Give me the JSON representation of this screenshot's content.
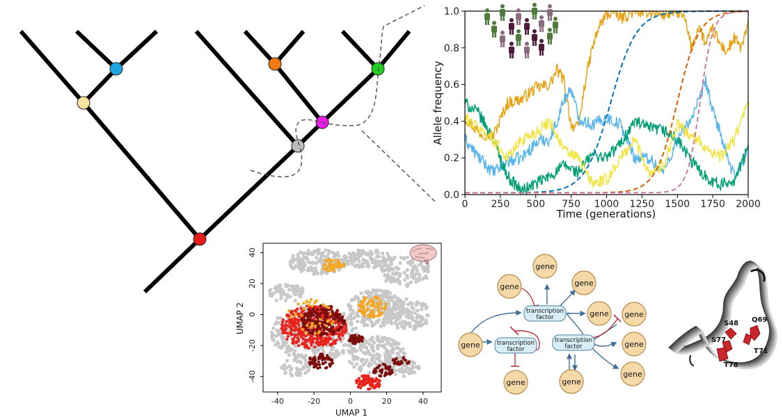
{
  "allele_plot": {
    "chart_data": {
      "type": "line",
      "xlabel": "Time (generations)",
      "ylabel": "Allele frequency",
      "xlim": [
        0,
        2000
      ],
      "ylim": [
        0,
        1
      ],
      "x_ticks": [
        "0",
        "250",
        "500",
        "750",
        "1000",
        "1250",
        "1500",
        "1750",
        "2000"
      ],
      "y_ticks": [
        "0.0",
        "0.2",
        "0.4",
        "0.6",
        "0.8",
        "1.0"
      ],
      "grid": false,
      "series": [
        {
          "style": "drift",
          "color": "#E6A317",
          "x": [
            0,
            100,
            200,
            300,
            400,
            500,
            600,
            650,
            700,
            750,
            800,
            850,
            900,
            950,
            1000,
            1050,
            1100,
            1200,
            1300,
            1400,
            1500,
            1550,
            1600,
            1650,
            1700,
            1750,
            1800,
            1850,
            1900,
            1950,
            2000
          ],
          "values": [
            0.42,
            0.34,
            0.32,
            0.5,
            0.52,
            0.58,
            0.6,
            0.68,
            0.62,
            0.38,
            0.36,
            0.62,
            0.8,
            0.92,
            0.98,
            1.0,
            0.96,
            1.0,
            1.0,
            0.98,
            1.0,
            0.96,
            0.8,
            0.92,
            0.82,
            0.9,
            0.82,
            0.78,
            0.85,
            0.8,
            0.92
          ]
        },
        {
          "style": "drift",
          "color": "#56B4E9",
          "x": [
            0,
            100,
            200,
            300,
            400,
            500,
            550,
            600,
            650,
            700,
            750,
            800,
            900,
            1000,
            1100,
            1200,
            1300,
            1400,
            1500,
            1600,
            1650,
            1700,
            1750,
            1800,
            1850,
            1900,
            1950,
            2000
          ],
          "values": [
            0.3,
            0.2,
            0.12,
            0.18,
            0.2,
            0.28,
            0.3,
            0.3,
            0.4,
            0.52,
            0.58,
            0.42,
            0.38,
            0.42,
            0.38,
            0.2,
            0.2,
            0.12,
            0.3,
            0.42,
            0.5,
            0.62,
            0.45,
            0.35,
            0.2,
            0.1,
            0.15,
            0.25
          ]
        },
        {
          "style": "drift",
          "color": "#009E73",
          "x": [
            0,
            100,
            200,
            300,
            400,
            500,
            600,
            700,
            800,
            900,
            1000,
            1100,
            1200,
            1300,
            1400,
            1500,
            1600,
            1700,
            1800,
            1900,
            2000
          ],
          "values": [
            0.5,
            0.44,
            0.3,
            0.1,
            0.02,
            0.06,
            0.1,
            0.16,
            0.12,
            0.22,
            0.2,
            0.28,
            0.4,
            0.36,
            0.35,
            0.3,
            0.18,
            0.1,
            0.05,
            0.08,
            0.25
          ]
        },
        {
          "style": "drift",
          "color": "#F0E442",
          "x": [
            0,
            100,
            200,
            300,
            400,
            500,
            600,
            700,
            800,
            900,
            1000,
            1100,
            1200,
            1300,
            1400,
            1500,
            1600,
            1700,
            1800,
            1900,
            2000
          ],
          "values": [
            0.42,
            0.36,
            0.3,
            0.2,
            0.3,
            0.34,
            0.4,
            0.24,
            0.2,
            0.06,
            0.08,
            0.2,
            0.3,
            0.12,
            0.16,
            0.38,
            0.32,
            0.26,
            0.2,
            0.3,
            0.5
          ]
        },
        {
          "style": "sweep",
          "color": "#0072B2",
          "mid": 1030,
          "k": 0.011,
          "start": 0.01
        },
        {
          "style": "sweep",
          "color": "#D55E00",
          "mid": 1500,
          "k": 0.013,
          "start": 0.01
        },
        {
          "style": "sweep",
          "color": "#CC79A7",
          "mid": 1660,
          "k": 0.022,
          "start": 0.01
        }
      ]
    }
  },
  "umap_plot": {
    "chart_data": {
      "type": "scatter",
      "xlabel": "UMAP 1",
      "ylabel": "UMAP 2",
      "xlim": [
        -48,
        50
      ],
      "ylim": [
        -50,
        46
      ],
      "x_ticks": [
        -40,
        -20,
        0,
        20,
        40
      ],
      "y_ticks": [
        40,
        20,
        0,
        -20,
        -40
      ],
      "colors": {
        "background": "#C8C8C8",
        "red": "#E8231C",
        "darkred": "#7A0C0C",
        "orange": "#F5A623"
      }
    }
  },
  "grn": {
    "gene_label": "gene",
    "tf_label_line1": "transcription",
    "tf_label_line2": "factor"
  },
  "protein": {
    "residues": [
      "S48",
      "Q69",
      "S77",
      "T71",
      "T78"
    ]
  }
}
